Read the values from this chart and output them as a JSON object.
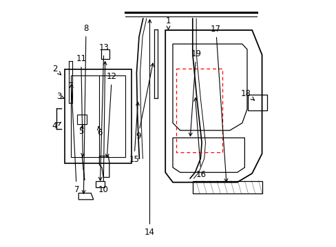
{
  "bg_color": "#ffffff",
  "line_color": "#000000",
  "red_dash_color": "#ff0000",
  "label_positions": {
    "1": {
      "text": [
        0.5,
        0.915
      ],
      "arrow": [
        0.5,
        0.87
      ]
    },
    "2": {
      "text": [
        0.042,
        0.72
      ],
      "arrow": [
        0.075,
        0.69
      ]
    },
    "3": {
      "text": [
        0.06,
        0.61
      ],
      "arrow": [
        0.082,
        0.6
      ]
    },
    "4": {
      "text": [
        0.042,
        0.49
      ],
      "arrow": [
        0.075,
        0.51
      ]
    },
    "5": {
      "text": [
        0.148,
        0.468
      ],
      "arrow": [
        0.155,
        0.495
      ]
    },
    "6": {
      "text": [
        0.222,
        0.462
      ],
      "arrow": [
        0.218,
        0.49
      ]
    },
    "7": {
      "text": [
        0.13,
        0.232
      ],
      "arrow": [
        0.108,
        0.67
      ]
    },
    "8": {
      "text": [
        0.168,
        0.885
      ],
      "arrow": [
        0.158,
        0.205
      ]
    },
    "9": {
      "text": [
        0.378,
        0.448
      ],
      "arrow": [
        0.44,
        0.755
      ]
    },
    "10": {
      "text": [
        0.238,
        0.232
      ],
      "arrow": [
        0.245,
        0.762
      ]
    },
    "11": {
      "text": [
        0.148,
        0.762
      ],
      "arrow": [
        0.155,
        0.355
      ]
    },
    "12": {
      "text": [
        0.272,
        0.69
      ],
      "arrow": [
        0.252,
        0.352
      ]
    },
    "13": {
      "text": [
        0.24,
        0.808
      ],
      "arrow": [
        0.225,
        0.258
      ]
    },
    "14": {
      "text": [
        0.425,
        0.06
      ],
      "arrow": [
        0.425,
        0.932
      ]
    },
    "15": {
      "text": [
        0.362,
        0.355
      ],
      "arrow": [
        0.378,
        0.598
      ]
    },
    "16": {
      "text": [
        0.632,
        0.292
      ],
      "arrow": [
        0.608,
        0.615
      ]
    },
    "17": {
      "text": [
        0.692,
        0.882
      ],
      "arrow": [
        0.735,
        0.252
      ]
    },
    "18": {
      "text": [
        0.812,
        0.622
      ],
      "arrow": [
        0.855,
        0.588
      ]
    },
    "19": {
      "text": [
        0.612,
        0.782
      ],
      "arrow": [
        0.588,
        0.438
      ]
    }
  }
}
